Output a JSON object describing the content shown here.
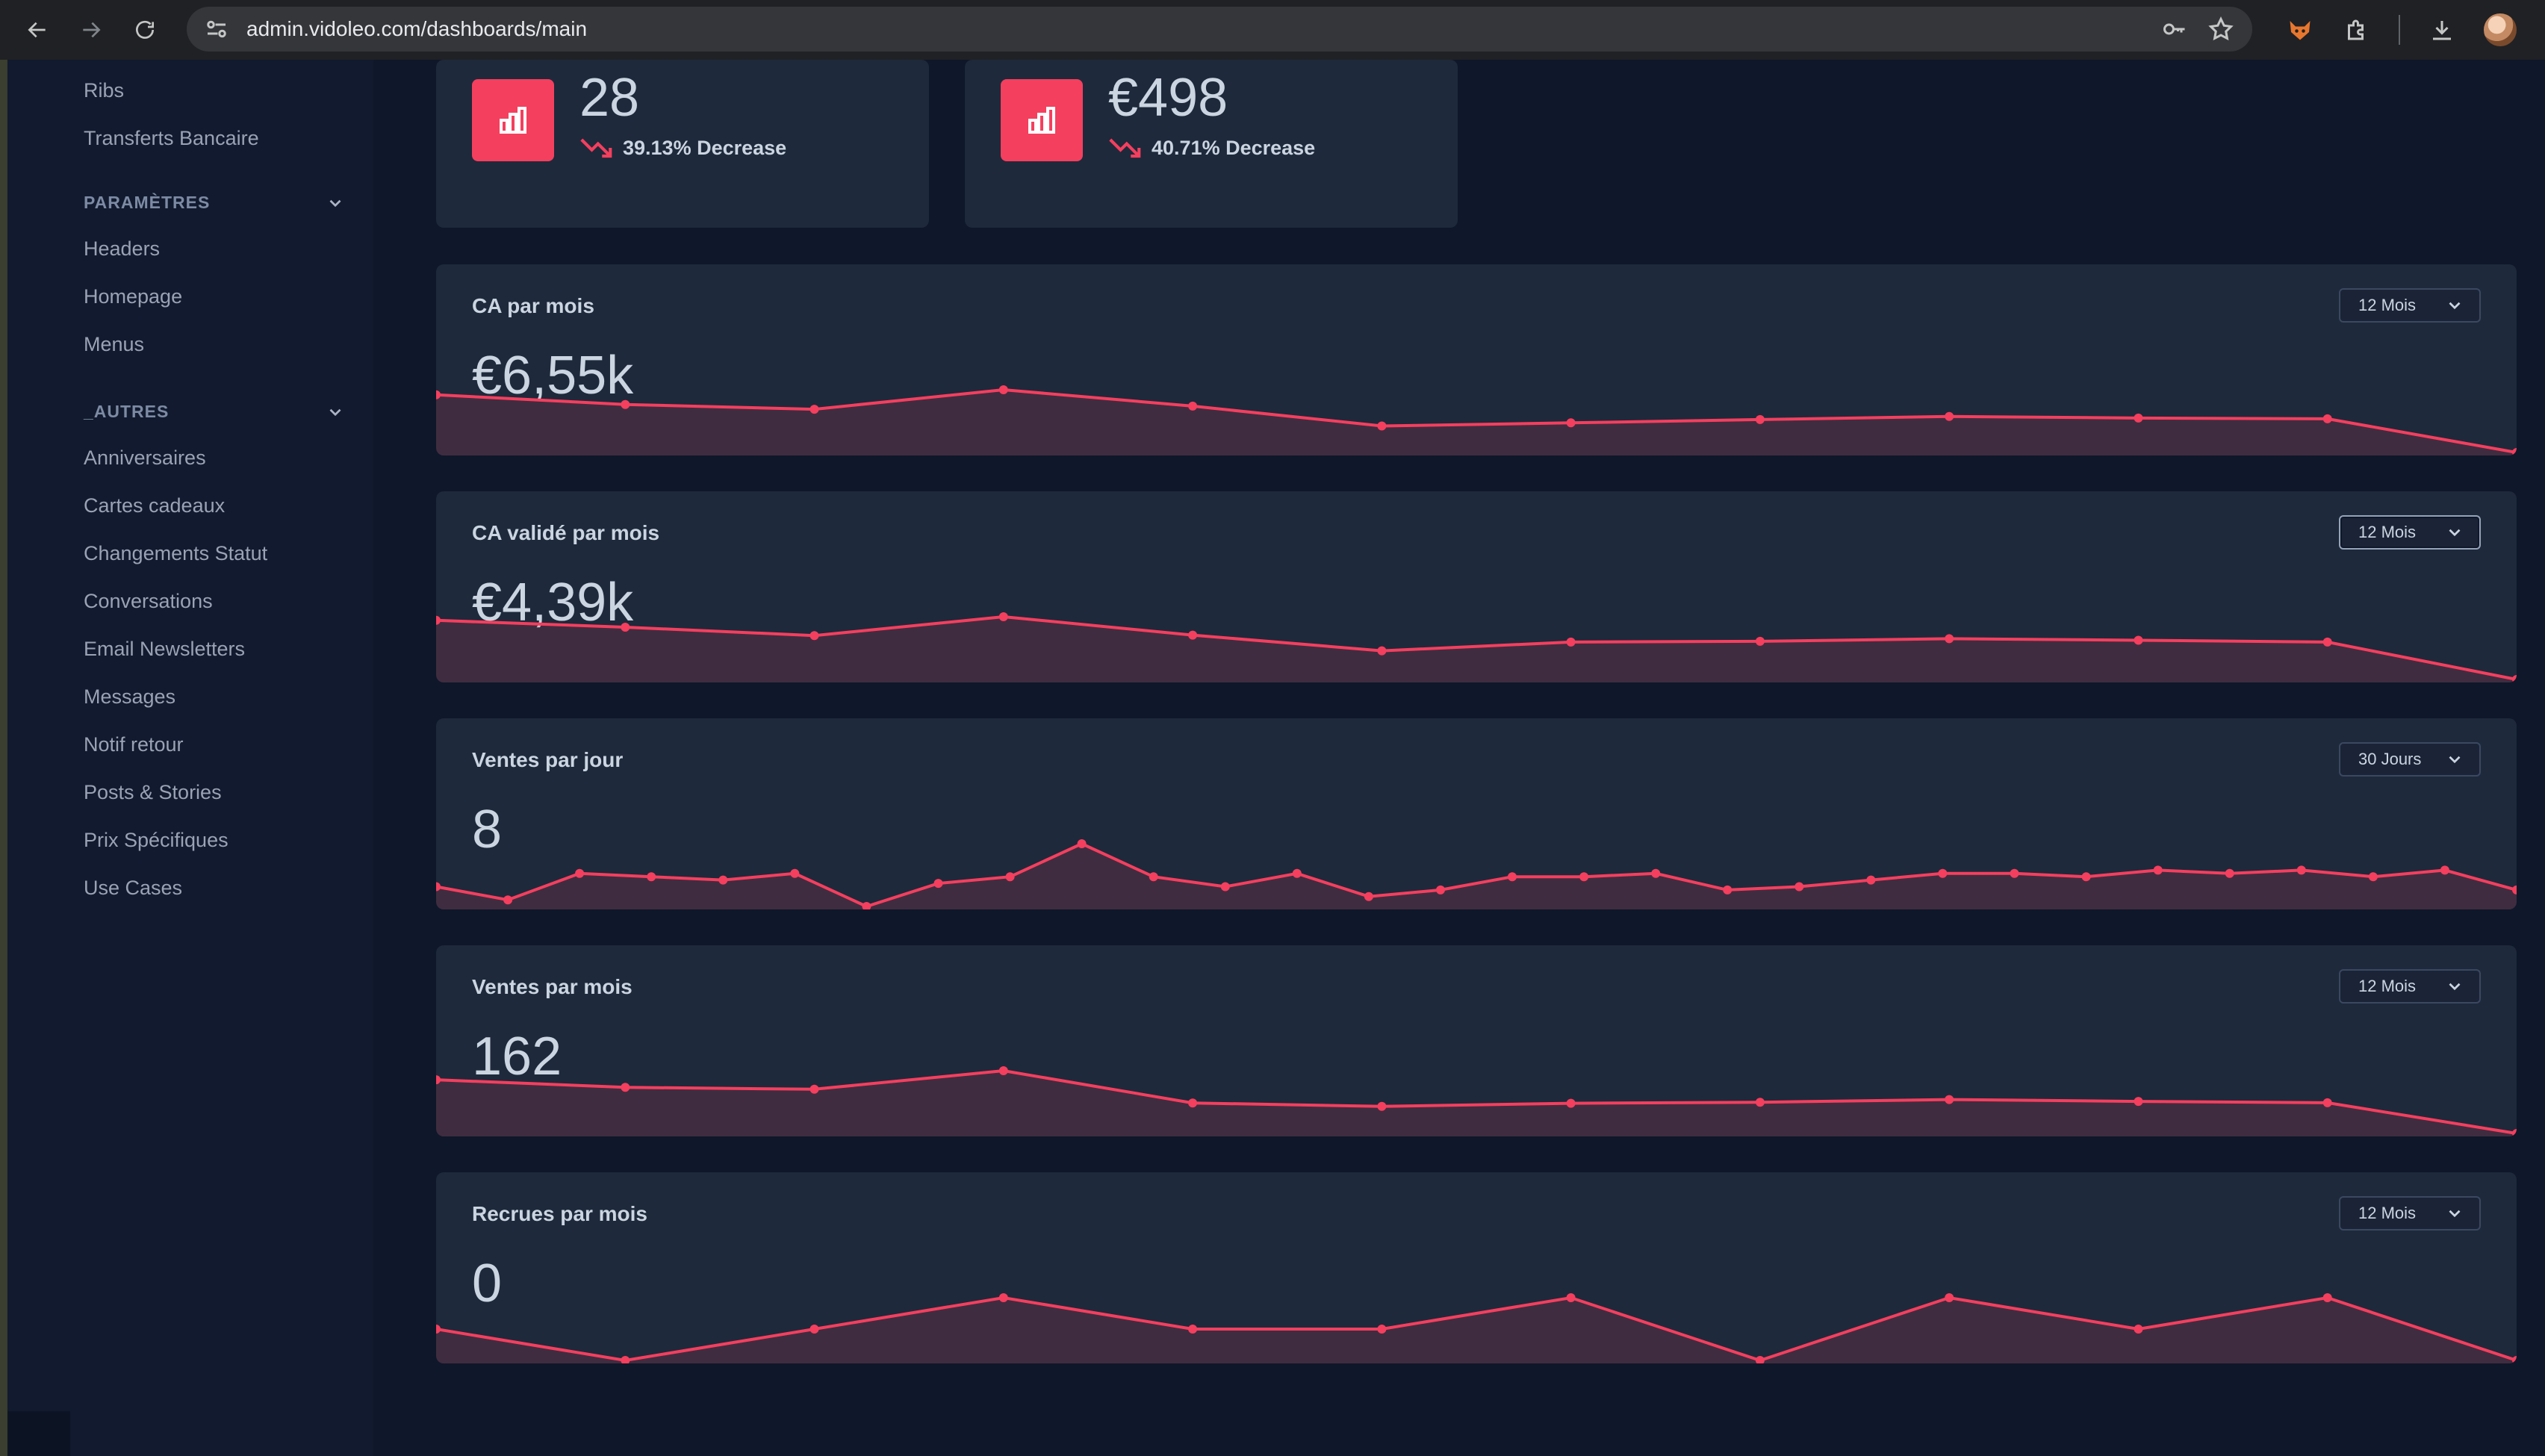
{
  "browser": {
    "url": "admin.vidoleo.com/dashboards/main"
  },
  "sidebar": {
    "top_links": [
      "Ribs",
      "Transferts Bancaire"
    ],
    "sections": [
      {
        "label": "PARAMÈTRES",
        "items": [
          "Headers",
          "Homepage",
          "Menus"
        ]
      },
      {
        "label": "_AUTRES",
        "items": [
          "Anniversaires",
          "Cartes cadeaux",
          "Changements Statut",
          "Conversations",
          "Email Newsletters",
          "Messages",
          "Notif retour",
          "Posts & Stories",
          "Prix Spécifiques",
          "Use Cases"
        ]
      }
    ]
  },
  "stats": [
    {
      "value": "28",
      "change": "39.13% Decrease"
    },
    {
      "value": "€498",
      "change": "40.71% Decrease"
    }
  ],
  "colors": {
    "accent": "#f43f5e",
    "card": "#1e293b",
    "background": "#0f172a"
  },
  "charts": [
    {
      "title": "CA par mois",
      "value": "€6,55k",
      "period": "12 Mois",
      "focused": false
    },
    {
      "title": "CA validé par mois",
      "value": "€4,39k",
      "period": "12 Mois",
      "focused": true
    },
    {
      "title": "Ventes par jour",
      "value": "8",
      "period": "30 Jours",
      "focused": false
    },
    {
      "title": "Ventes par mois",
      "value": "162",
      "period": "12 Mois",
      "focused": false
    },
    {
      "title": "Recrues par mois",
      "value": "0",
      "period": "12 Mois",
      "focused": false
    }
  ],
  "chart_data": [
    {
      "type": "area",
      "title": "CA par mois",
      "values": [
        6.75,
        6.22,
        5.96,
        7.02,
        6.13,
        5.05,
        5.22,
        5.4,
        5.57,
        5.48,
        5.44,
        3.61
      ]
    },
    {
      "type": "area",
      "title": "CA validé par mois",
      "values": [
        6.0,
        5.65,
        5.23,
        6.18,
        5.25,
        4.46,
        4.9,
        4.94,
        5.07,
        4.99,
        4.9,
        3.01
      ]
    },
    {
      "type": "area",
      "title": "Ventes par jour",
      "values": [
        12,
        8,
        16,
        15,
        14,
        16,
        6,
        13,
        15,
        25,
        15,
        12,
        16,
        9,
        11,
        15,
        15,
        16,
        11,
        12,
        14,
        16,
        16,
        15,
        17,
        16,
        17,
        15,
        17,
        11
      ]
    },
    {
      "type": "area",
      "title": "Ventes par mois",
      "values": [
        240,
        211,
        204,
        274,
        152,
        139,
        151,
        155,
        165,
        158,
        153,
        37
      ]
    },
    {
      "type": "area",
      "title": "Recrues par mois",
      "values": [
        1,
        0,
        1,
        2,
        1,
        1,
        2,
        0,
        2,
        1,
        2,
        0
      ]
    }
  ]
}
